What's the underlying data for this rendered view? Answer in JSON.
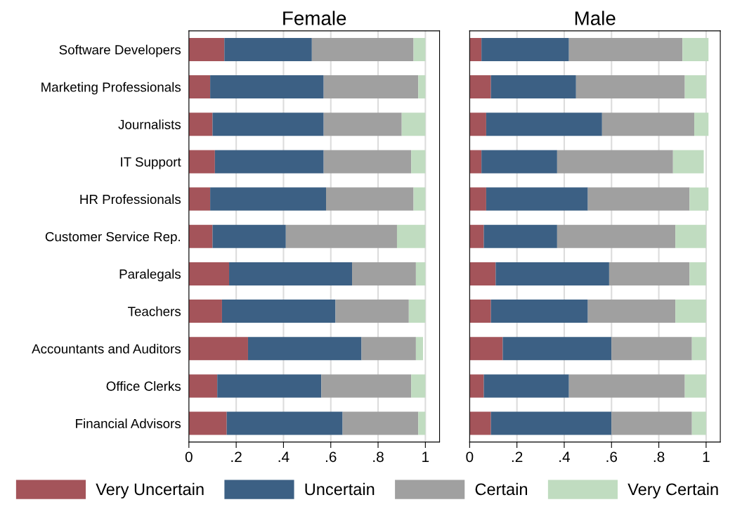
{
  "chart_data": [
    {
      "type": "bar",
      "orientation": "horizontal",
      "stacked": true,
      "title": "Female",
      "categories": [
        "Software Developers",
        "Marketing Professionals",
        "Journalists",
        "IT Support",
        "HR Professionals",
        "Customer Service Rep.",
        "Paralegals",
        "Teachers",
        "Accountants and Auditors",
        "Office Clerks",
        "Financial Advisors"
      ],
      "series": [
        {
          "name": "Very Uncertain",
          "color": "#a4545a",
          "values": [
            0.15,
            0.09,
            0.1,
            0.11,
            0.09,
            0.1,
            0.17,
            0.14,
            0.25,
            0.12,
            0.16
          ]
        },
        {
          "name": "Uncertain",
          "color": "#3c6084",
          "values": [
            0.37,
            0.48,
            0.47,
            0.46,
            0.49,
            0.31,
            0.52,
            0.48,
            0.48,
            0.44,
            0.49
          ]
        },
        {
          "name": "Certain",
          "color": "#a0a0a0",
          "values": [
            0.43,
            0.4,
            0.33,
            0.37,
            0.37,
            0.47,
            0.27,
            0.31,
            0.23,
            0.38,
            0.32
          ]
        },
        {
          "name": "Very Certain",
          "color": "#c0dcc0",
          "values": [
            0.05,
            0.03,
            0.1,
            0.06,
            0.05,
            0.12,
            0.04,
            0.07,
            0.03,
            0.06,
            0.03
          ]
        }
      ],
      "xlim": [
        0,
        1.06
      ],
      "xticks": [
        0,
        {
          "value": 0.2,
          "label": ".2"
        },
        {
          "value": 0.4,
          "label": ".4"
        },
        {
          "value": 0.6,
          "label": ".6"
        },
        {
          "value": 0.8,
          "label": ".8"
        },
        1
      ],
      "grid": "x",
      "legend": "bottom"
    },
    {
      "type": "bar",
      "orientation": "horizontal",
      "stacked": true,
      "title": "Male",
      "series": [
        {
          "color": "#a4545a",
          "values": [
            0.05,
            0.09,
            0.07,
            0.05,
            0.07,
            0.06,
            0.11,
            0.09,
            0.14,
            0.06,
            0.09
          ]
        },
        {
          "color": "#3c6084",
          "values": [
            0.37,
            0.36,
            0.49,
            0.32,
            0.43,
            0.31,
            0.48,
            0.41,
            0.46,
            0.36,
            0.51
          ]
        },
        {
          "color": "#a0a0a0",
          "values": [
            0.48,
            0.46,
            0.39,
            0.49,
            0.43,
            0.5,
            0.34,
            0.37,
            0.34,
            0.49,
            0.34
          ]
        },
        {
          "color": "#c0dcc0",
          "values": [
            0.11,
            0.09,
            0.06,
            0.13,
            0.08,
            0.13,
            0.07,
            0.13,
            0.06,
            0.09,
            0.06
          ]
        }
      ],
      "xlim": [
        0,
        1.06
      ],
      "xticks": [
        0,
        {
          "value": 0.2,
          "label": ".2"
        },
        {
          "value": 0.4,
          "label": ".4"
        },
        {
          "value": 0.6,
          "label": ".6"
        },
        {
          "value": 0.8,
          "label": ".8"
        },
        1
      ],
      "grid": "x",
      "tick_labels": "x"
    }
  ]
}
